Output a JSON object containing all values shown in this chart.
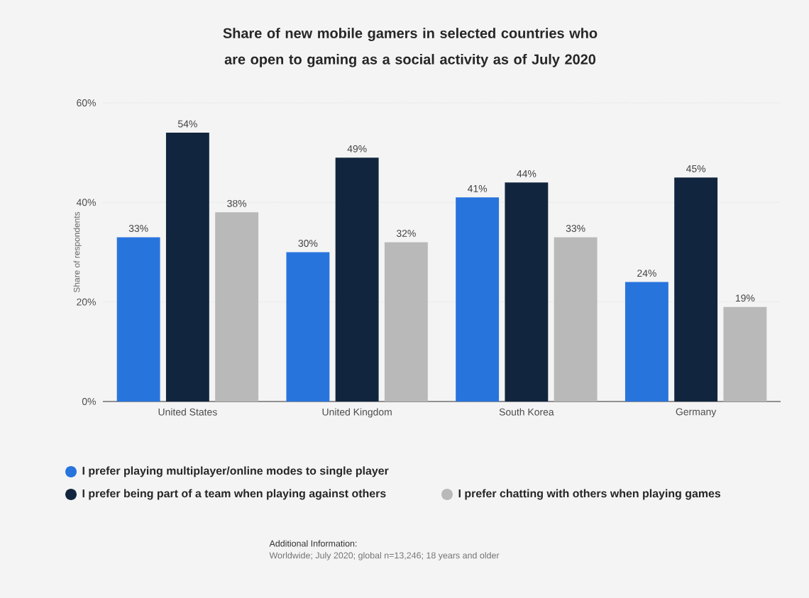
{
  "chart_data": {
    "type": "bar",
    "title": "Share of new mobile gamers in selected countries who are open to gaming as a social activity as of July 2020",
    "ylabel": "Share of respondents",
    "categories": [
      "United States",
      "United Kingdom",
      "South Korea",
      "Germany"
    ],
    "series": [
      {
        "name": "I prefer playing multiplayer/online modes to single player",
        "color": "#2874dd",
        "values": [
          33,
          30,
          41,
          24
        ],
        "value_labels": [
          "33%",
          "30%",
          "41%",
          "24%"
        ]
      },
      {
        "name": "I prefer being part of a team when playing against others",
        "color": "#11263e",
        "values": [
          54,
          49,
          44,
          45
        ],
        "value_labels": [
          "54%",
          "49%",
          "44%",
          "45%"
        ]
      },
      {
        "name": "I prefer chatting with others when playing games",
        "color": "#b9b9b9",
        "values": [
          38,
          32,
          33,
          19
        ],
        "value_labels": [
          "38%",
          "32%",
          "33%",
          "19%"
        ]
      }
    ],
    "ylim": [
      0,
      60
    ],
    "yticks": [
      {
        "value": 0,
        "label": "0%"
      },
      {
        "value": 20,
        "label": "20%"
      },
      {
        "value": 40,
        "label": "40%"
      },
      {
        "value": 60,
        "label": "60%"
      }
    ],
    "grid": "y",
    "legend": "bottom",
    "annotations": [
      "Additional Information:",
      "Worldwide; July 2020; global n=13,246; 18 years and older"
    ]
  }
}
